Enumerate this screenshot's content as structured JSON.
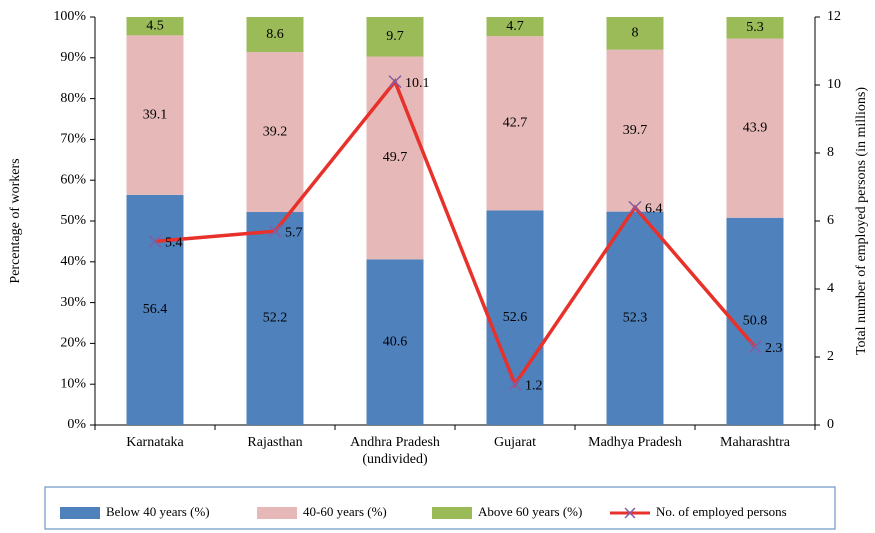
{
  "chart_data": {
    "type": "stacked_bar_line",
    "y_label": "Percentage of workers",
    "y2_label": "Total number of employed persons (in millions)",
    "categories": [
      "Karnataka",
      "Rajasthan",
      "Andhra Pradesh\n(undivided)",
      "Gujarat",
      "Madhya Pradesh",
      "Maharashtra"
    ],
    "ylim": [
      0,
      100
    ],
    "yticks": [
      {
        "value": 0,
        "label": "0%"
      },
      {
        "value": 10,
        "label": "10%"
      },
      {
        "value": 20,
        "label": "20%"
      },
      {
        "value": 30,
        "label": "30%"
      },
      {
        "value": 40,
        "label": "40%"
      },
      {
        "value": 50,
        "label": "50%"
      },
      {
        "value": 60,
        "label": "60%"
      },
      {
        "value": 70,
        "label": "70%"
      },
      {
        "value": 80,
        "label": "80%"
      },
      {
        "value": 90,
        "label": "90%"
      },
      {
        "value": 100,
        "label": "100%"
      }
    ],
    "y2lim": [
      0,
      12
    ],
    "y2ticks": [
      0,
      2,
      4,
      6,
      8,
      10,
      12
    ],
    "legend": "bottom",
    "series": [
      {
        "name": "Below 40 years (%)",
        "color": "#4f81bd",
        "values": [
          56.4,
          52.2,
          40.6,
          52.6,
          52.3,
          50.8
        ]
      },
      {
        "name": "40-60 years (%)",
        "color": "#e6b9b8",
        "values": [
          39.1,
          39.2,
          49.7,
          42.7,
          39.7,
          43.9
        ]
      },
      {
        "name": "Above 60 years (%)",
        "color": "#9bbb59",
        "values": [
          4.5,
          8.6,
          9.7,
          4.7,
          8,
          5.3
        ]
      },
      {
        "name": "No. of employed persons",
        "color": "#e8312b",
        "marker_color": "#7f5fa8",
        "axis": "y2",
        "values": [
          5.4,
          5.7,
          10.1,
          1.2,
          6.4,
          2.3
        ]
      }
    ]
  }
}
